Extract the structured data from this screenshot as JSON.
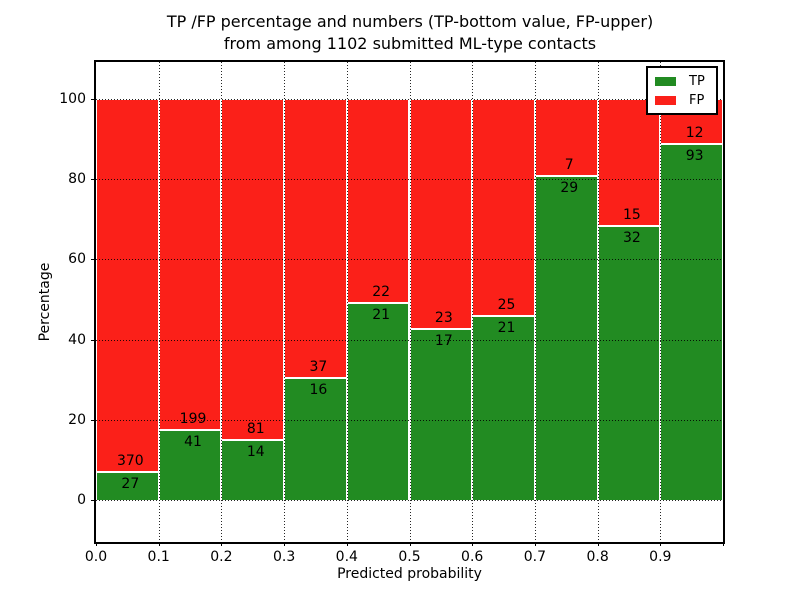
{
  "title": {
    "line1": "TP /FP percentage and numbers (TP-bottom value, FP-upper)",
    "line2": "from among 1102 submitted ML-type contacts"
  },
  "chart_data": {
    "type": "bar",
    "stacked": true,
    "normalized": "each bar scaled to 100%",
    "title": "TP /FP percentage and numbers (TP-bottom value, FP-upper) from among 1102 submitted ML-type contacts",
    "xlabel": "Predicted probability",
    "ylabel": "Percentage",
    "total_contacts": 1102,
    "bin_edges": [
      0.0,
      0.1,
      0.2,
      0.3,
      0.4,
      0.5,
      0.6,
      0.7,
      0.8,
      0.9,
      1.0
    ],
    "x_tick_labels": [
      "0.0",
      "0.1",
      "0.2",
      "0.3",
      "0.4",
      "0.5",
      "0.6",
      "0.7",
      "0.8",
      "0.9"
    ],
    "y_ticks": [
      0,
      20,
      40,
      60,
      80,
      100
    ],
    "ylim": [
      -10,
      110
    ],
    "grid": "dotted black, on",
    "legend_position": "upper right",
    "series": [
      {
        "name": "TP",
        "color": "#228b22",
        "values": [
          27,
          41,
          14,
          16,
          21,
          17,
          21,
          29,
          32,
          93
        ]
      },
      {
        "name": "FP",
        "color": "#fb2019",
        "values": [
          370,
          199,
          81,
          37,
          22,
          23,
          25,
          7,
          15,
          12
        ]
      }
    ],
    "tp_percent_per_bin": [
      6.8,
      17.1,
      14.7,
      30.2,
      48.8,
      42.5,
      45.7,
      80.6,
      68.1,
      88.6
    ]
  },
  "colors": {
    "tp_green": "#228b22",
    "fp_red": "#fb2019",
    "background": "#ffffff",
    "axis_and_text": "#000000"
  }
}
